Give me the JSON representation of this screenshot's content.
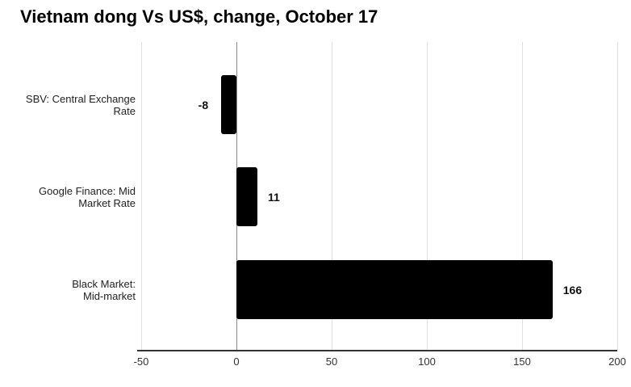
{
  "title": "Vietnam dong Vs US$, change, October 17",
  "chart_data": {
    "type": "bar",
    "orientation": "horizontal",
    "title": "Vietnam dong Vs US$, change, October 17",
    "categories": [
      "SBV: Central Exchange Rate",
      "Google Finance: Mid Market Rate",
      "Black Market: Mid-market"
    ],
    "category_display_lines": [
      "SBV: Central Exchange\nRate",
      "Google Finance: Mid\nMarket Rate",
      "Black Market:\nMid-market"
    ],
    "values": [
      -8,
      11,
      166
    ],
    "value_labels": [
      "-8",
      "11",
      "166"
    ],
    "xlabel": "",
    "ylabel": "",
    "xticks": [
      "-50",
      "0",
      "50",
      "100",
      "150",
      "200"
    ],
    "xtick_values": [
      -50,
      0,
      50,
      100,
      150,
      200
    ],
    "xlim": [
      -50,
      200
    ],
    "legend": "none",
    "grid": "vertical",
    "colors": {
      "bar": "#000000",
      "gridline": "#e0e0e0",
      "zero_line": "#8a8a8a",
      "axis_line": "#333333",
      "title_text": "#000000",
      "category_text": "#222222",
      "tick_text": "#333333",
      "value_text": "#111111",
      "background": "#ffffff"
    }
  }
}
